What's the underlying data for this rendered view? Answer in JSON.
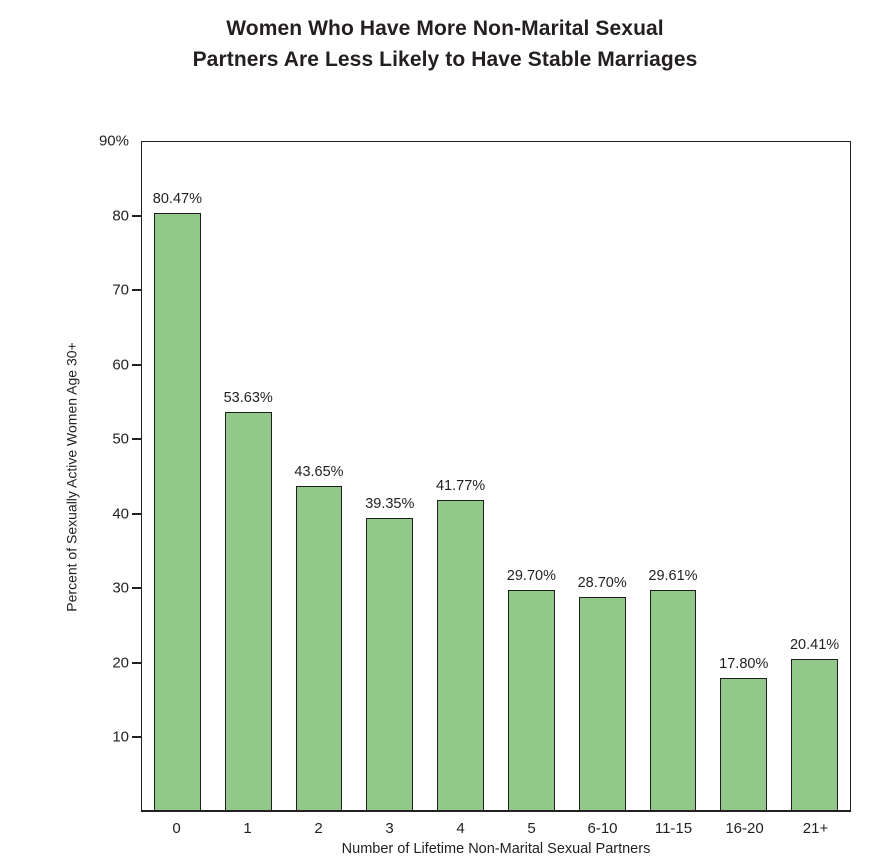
{
  "title": {
    "line1": "Women Who Have More Non-Marital Sexual",
    "line2": "Partners Are Less Likely to Have Stable Marriages"
  },
  "chart_data": {
    "type": "bar",
    "title": "Women Who Have More Non-Marital Sexual Partners Are Less Likely to Have Stable Marriages",
    "categories": [
      "0",
      "1",
      "2",
      "3",
      "4",
      "5",
      "6-10",
      "11-15",
      "16-20",
      "21+"
    ],
    "values": [
      80.47,
      53.63,
      43.65,
      39.35,
      41.77,
      29.7,
      28.7,
      29.61,
      17.8,
      20.41
    ],
    "bar_labels": [
      "80.47%",
      "53.63%",
      "43.65%",
      "39.35%",
      "41.77%",
      "29.70%",
      "28.70%",
      "29.61%",
      "17.80%",
      "20.41%"
    ],
    "xlabel": "Number of Lifetime Non-Marital Sexual Partners",
    "ylabel": "Percent of Sexually Active Women Age 30+",
    "ylim": [
      0,
      90
    ],
    "y_ticks": [
      {
        "label": "90%",
        "value": 90,
        "dash": false
      },
      {
        "label": "80",
        "value": 80,
        "dash": true
      },
      {
        "label": "70",
        "value": 70,
        "dash": true
      },
      {
        "label": "60",
        "value": 60,
        "dash": true
      },
      {
        "label": "50",
        "value": 50,
        "dash": true
      },
      {
        "label": "40",
        "value": 40,
        "dash": true
      },
      {
        "label": "30",
        "value": 30,
        "dash": true
      },
      {
        "label": "20",
        "value": 20,
        "dash": true
      },
      {
        "label": "10",
        "value": 10,
        "dash": true
      }
    ],
    "grid": false,
    "legend": null,
    "colors": {
      "bar_fill": "#92c88a",
      "bar_border": "#1e1e1e",
      "axis": "#231f20",
      "text": "#231f20"
    }
  }
}
